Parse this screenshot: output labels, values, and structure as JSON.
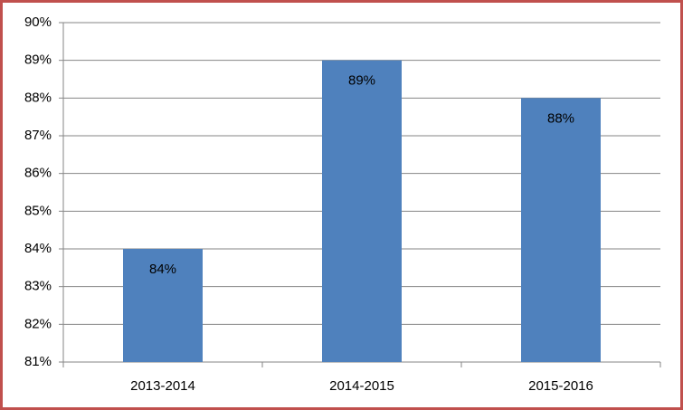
{
  "chart_data": {
    "type": "bar",
    "categories": [
      "2013-2014",
      "2014-2015",
      "2015-2016"
    ],
    "values": [
      84,
      89,
      88
    ],
    "value_labels": [
      "84%",
      "89%",
      "88%"
    ],
    "color": "#4f81bd",
    "ylim": [
      81,
      90
    ],
    "yticks": [
      {
        "value": 81,
        "label": "81%"
      },
      {
        "value": 82,
        "label": "82%"
      },
      {
        "value": 83,
        "label": "83%"
      },
      {
        "value": 84,
        "label": "84%"
      },
      {
        "value": 85,
        "label": "85%"
      },
      {
        "value": 86,
        "label": "86%"
      },
      {
        "value": 87,
        "label": "87%"
      },
      {
        "value": 88,
        "label": "88%"
      },
      {
        "value": 89,
        "label": "89%"
      },
      {
        "value": 90,
        "label": "90%"
      }
    ],
    "grid": true
  }
}
